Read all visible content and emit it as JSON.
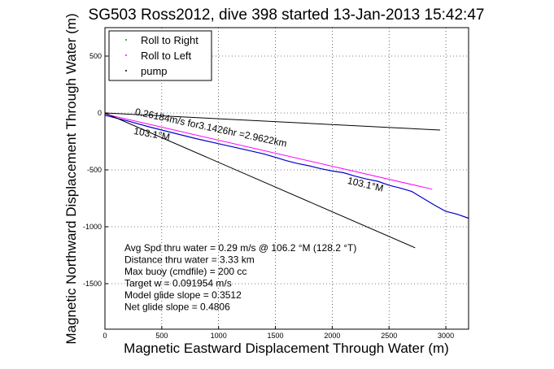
{
  "chart_data": {
    "type": "line",
    "title": "SG503 Ross2012, dive 398 started 13-Jan-2013 15:42:47",
    "xlabel": "Magnetic Eastward Displacement Through Water (m)",
    "ylabel": "Magnetic Northward Displacement Through Water (m)",
    "xlim": [
      0,
      3200
    ],
    "ylim": [
      -1900,
      750
    ],
    "xticks": [
      0,
      500,
      1000,
      1500,
      2000,
      2500,
      3000
    ],
    "yticks": [
      500,
      0,
      -500,
      -1000,
      -1500
    ],
    "grid": true,
    "legend": {
      "placement": "top-left",
      "entries": [
        {
          "label": "Roll to Right",
          "color": "#00a000"
        },
        {
          "label": "Roll to Left",
          "color": "#ff00ff"
        },
        {
          "label": "pump",
          "color": "#000000"
        }
      ]
    },
    "series": [
      {
        "kind": "track",
        "color": "#0000cc",
        "x": [
          0,
          200,
          400,
          600,
          800,
          1000,
          1200,
          1400,
          1500,
          1600,
          1700,
          1800,
          1900,
          2000,
          2100,
          2200,
          2300,
          2400,
          2500,
          2600,
          2700,
          2800,
          2900,
          3000,
          3100,
          3200
        ],
        "y": [
          -20,
          -70,
          -125,
          -175,
          -225,
          -270,
          -315,
          -360,
          -390,
          -420,
          -445,
          -465,
          -490,
          -510,
          -525,
          -555,
          -580,
          -600,
          -635,
          -660,
          -690,
          -750,
          -810,
          -865,
          -890,
          -925
        ]
      },
      {
        "kind": "magenta-fit",
        "color": "#ff00ff",
        "x": [
          0,
          2880
        ],
        "y": [
          -10,
          -670
        ]
      },
      {
        "kind": "ref-line-1",
        "color": "#000000",
        "x": [
          0,
          2950
        ],
        "y": [
          0,
          -150
        ]
      },
      {
        "kind": "ref-line-2",
        "color": "#000000",
        "x": [
          0,
          2730
        ],
        "y": [
          0,
          -1185
        ]
      }
    ],
    "annotations": [
      {
        "text": "0.26184m/s for3.1426hr =2.9622km",
        "x": 260,
        "y": -15,
        "angle": 12
      },
      {
        "text": "103.1°M",
        "x": 250,
        "y": -185,
        "angle": 10
      },
      {
        "text": "103.1°M",
        "x": 2130,
        "y": -620,
        "angle": 13
      }
    ],
    "stats": [
      "Avg Spd thru water =  0.29 m/s @ 106.2   °M (128.2 °T)",
      "Distance thru water =  3.33 km",
      "Max buoy (cmdfile) = 200 cc",
      "Target w = 0.091954 m/s",
      "Model glide slope = 0.3512",
      "Net glide slope = 0.4806"
    ]
  }
}
